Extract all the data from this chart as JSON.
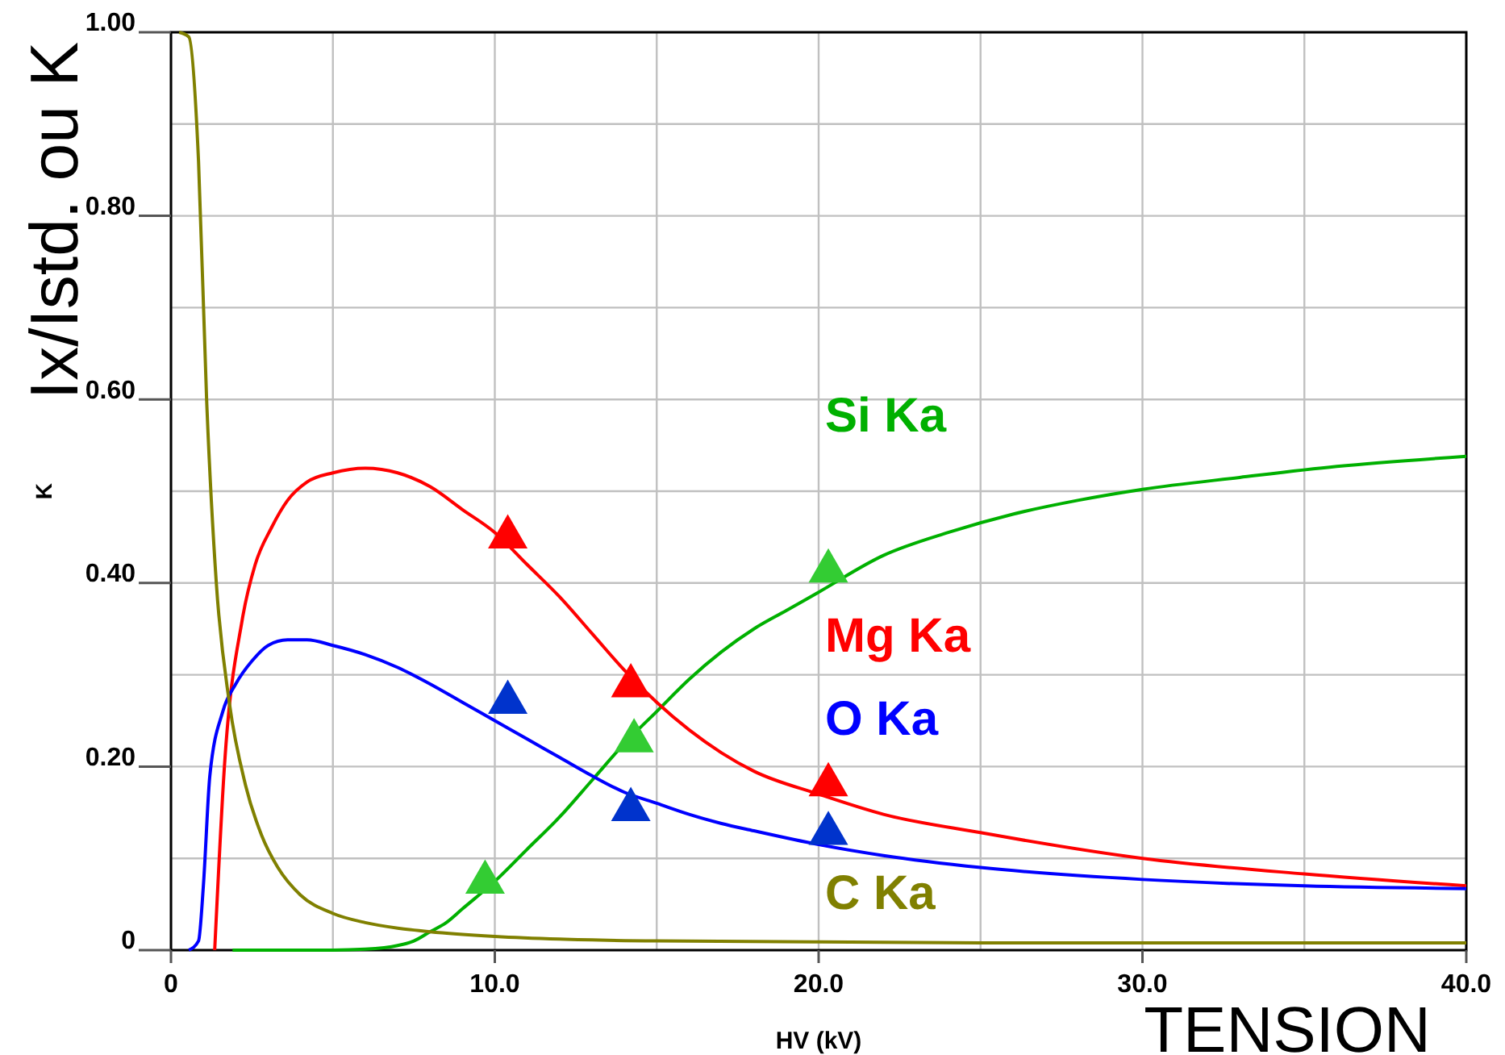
{
  "chart_data": {
    "type": "line",
    "xlabel": "HV (kV)",
    "ylabel": "K",
    "annotations": [
      "Ix/Istd. ou K",
      "TENSION"
    ],
    "xlim": [
      0,
      40
    ],
    "ylim": [
      0,
      1
    ],
    "xticks": [
      0,
      {
        "value": 5,
        "label": null
      },
      {
        "value": 10,
        "label": "10.0"
      },
      {
        "value": 15,
        "label": null
      },
      {
        "value": 20,
        "label": "20.0"
      },
      {
        "value": 25,
        "label": null
      },
      {
        "value": 30,
        "label": "30.0"
      },
      {
        "value": 35,
        "label": null
      },
      {
        "value": 40,
        "label": "40.0"
      }
    ],
    "yticks": [
      0,
      {
        "value": 0.1,
        "label": null
      },
      {
        "value": 0.2,
        "label": "0.20"
      },
      {
        "value": 0.3,
        "label": null
      },
      {
        "value": 0.4,
        "label": "0.40"
      },
      {
        "value": 0.5,
        "label": null
      },
      {
        "value": 0.6,
        "label": "0.60"
      },
      {
        "value": 0.7,
        "label": null
      },
      {
        "value": 0.8,
        "label": "0.80"
      },
      {
        "value": 0.9,
        "label": null
      },
      {
        "value": 1,
        "label": "1.00"
      }
    ],
    "grid": true,
    "marker": "none",
    "line_style": "solid",
    "series": [
      {
        "name": "Si Ka",
        "color": "#00b000",
        "x": [
          1.9,
          5,
          6,
          7,
          7.5,
          8,
          8.5,
          9,
          10,
          11,
          12,
          13,
          14,
          15,
          16,
          17,
          18,
          19,
          20,
          22,
          24,
          26,
          28,
          30,
          33,
          36,
          40
        ],
        "values": [
          0,
          0,
          0.001,
          0.005,
          0.01,
          0.02,
          0.03,
          0.045,
          0.075,
          0.11,
          0.145,
          0.185,
          0.225,
          0.26,
          0.295,
          0.325,
          0.35,
          0.37,
          0.39,
          0.43,
          0.455,
          0.475,
          0.49,
          0.502,
          0.515,
          0.527,
          0.538
        ]
      },
      {
        "name": "Mg Ka",
        "color": "#ff0000",
        "x": [
          1.35,
          1.65,
          2.2,
          2.6,
          3.1,
          3.6,
          4.2,
          5,
          6,
          7,
          8,
          9,
          10,
          11,
          12,
          13,
          14,
          15,
          16,
          17,
          18,
          20,
          22,
          25,
          30,
          35,
          40
        ],
        "values": [
          0,
          0.2,
          0.36,
          0.42,
          0.46,
          0.49,
          0.51,
          0.52,
          0.525,
          0.52,
          0.505,
          0.48,
          0.455,
          0.42,
          0.385,
          0.345,
          0.305,
          0.27,
          0.24,
          0.215,
          0.195,
          0.17,
          0.148,
          0.128,
          0.1,
          0.083,
          0.07
        ]
      },
      {
        "name": "O Ka",
        "color": "#0000ff",
        "x": [
          0.55,
          0.85,
          1,
          1.2,
          1.6,
          2,
          2.5,
          3,
          3.6,
          4.2,
          5,
          6,
          7,
          8,
          9,
          10,
          11,
          12,
          13,
          14,
          15,
          16,
          17,
          18,
          20,
          22,
          25,
          30,
          35,
          40
        ],
        "values": [
          0,
          0.01,
          0.07,
          0.19,
          0.26,
          0.29,
          0.315,
          0.332,
          0.338,
          0.338,
          0.332,
          0.322,
          0.308,
          0.29,
          0.27,
          0.25,
          0.23,
          0.21,
          0.19,
          0.172,
          0.16,
          0.148,
          0.138,
          0.13,
          0.115,
          0.103,
          0.09,
          0.077,
          0.07,
          0.067
        ]
      },
      {
        "name": "C Ka",
        "color": "#808000",
        "x": [
          0.25,
          0.55,
          0.85,
          1.1,
          1.4,
          1.8,
          2.3,
          2.8,
          3.3,
          4,
          5,
          6,
          7,
          8,
          10,
          12,
          15,
          20,
          25,
          30,
          40
        ],
        "values": [
          1,
          0.995,
          0.86,
          0.6,
          0.4,
          0.27,
          0.18,
          0.125,
          0.09,
          0.06,
          0.04,
          0.03,
          0.024,
          0.02,
          0.015,
          0.012,
          0.01,
          0.009,
          0.008,
          0.008,
          0.008
        ]
      },
      {
        "type": "scatter",
        "marker": "triangle",
        "color": "#ff0000",
        "x": [
          10.4,
          14.2,
          20.3
        ],
        "values": [
          0.45,
          0.288,
          0.18
        ]
      },
      {
        "type": "scatter",
        "marker": "triangle",
        "color": "#0033cc",
        "x": [
          10.4,
          14.2,
          20.3
        ],
        "values": [
          0.27,
          0.153,
          0.127
        ]
      },
      {
        "type": "scatter",
        "marker": "triangle",
        "color": "#33cc33",
        "x": [
          9.7,
          14.3,
          20.3
        ],
        "values": [
          0.074,
          0.228,
          0.413
        ]
      }
    ]
  }
}
